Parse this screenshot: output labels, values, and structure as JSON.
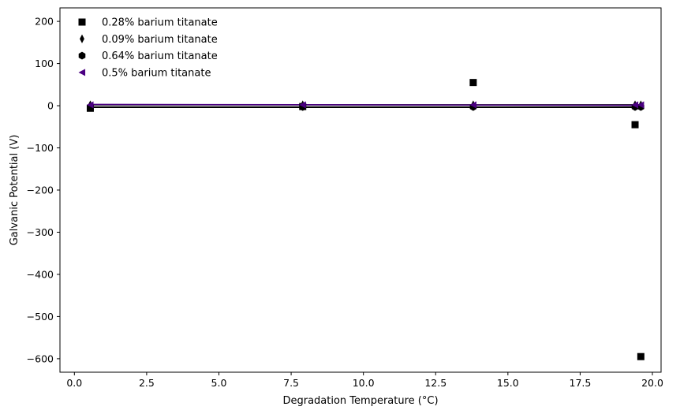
{
  "chart_data": {
    "type": "scatter",
    "title": "",
    "xlabel": "Degradation Temperature (°C)",
    "ylabel": "Galvanic Potential (V)",
    "xlim": [
      -0.5,
      20.3
    ],
    "ylim": [
      -632,
      232
    ],
    "xticks": [
      0.0,
      2.5,
      5.0,
      7.5,
      10.0,
      12.5,
      15.0,
      17.5,
      20.0
    ],
    "xtick_labels": [
      "0.0",
      "2.5",
      "5.0",
      "7.5",
      "10.0",
      "12.5",
      "15.0",
      "17.5",
      "20.0"
    ],
    "yticks": [
      200,
      100,
      0,
      -100,
      -200,
      -300,
      -400,
      -500,
      -600
    ],
    "ytick_labels": [
      "200",
      "100",
      "0",
      "−100",
      "−200",
      "−300",
      "−400",
      "−500",
      "−600"
    ],
    "grid": false,
    "legend_position": "top-left",
    "series": [
      {
        "name": "0.28% barium titanate",
        "marker": "square",
        "color": "#000000",
        "x": [
          0.55,
          7.9,
          13.8,
          19.4,
          19.6
        ],
        "y": [
          -6,
          -2,
          55,
          -45,
          -595
        ],
        "fit": [
          -4,
          -4
        ]
      },
      {
        "name": "0.09% barium titanate",
        "marker": "thin-diamond",
        "color": "#000000",
        "x": [
          0.55,
          7.9,
          13.8,
          19.4,
          19.6
        ],
        "y": [
          2,
          2,
          2,
          2,
          2
        ],
        "fit": [
          2,
          2
        ]
      },
      {
        "name": "0.64% barium titanate",
        "marker": "hexagon",
        "color": "#000000",
        "x": [
          0.55,
          7.9,
          13.8,
          19.4,
          19.6
        ],
        "y": [
          -3,
          -3,
          -3,
          -3,
          -3
        ],
        "fit": [
          -3,
          -3
        ]
      },
      {
        "name": "0.5% barium titanate",
        "marker": "triangle-left",
        "color": "#4b0082",
        "x": [
          0.55,
          7.9,
          13.8,
          19.4,
          19.6
        ],
        "y": [
          2,
          2,
          2,
          2,
          2
        ],
        "fit": [
          3,
          1
        ]
      }
    ]
  }
}
